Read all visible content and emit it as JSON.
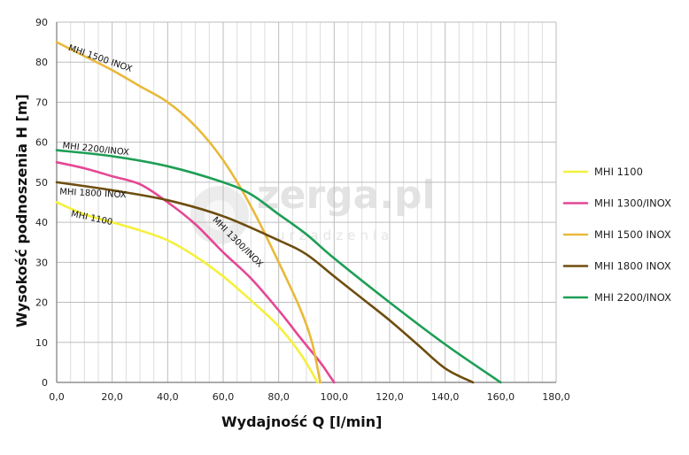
{
  "chart_data": {
    "type": "line",
    "xlabel": "Wydajność Q [l/min]",
    "ylabel": "Wysokość podnoszenia H [m]",
    "xlim": [
      0,
      180
    ],
    "ylim": [
      0,
      90
    ],
    "x_ticks": [
      "0,0",
      "20,0",
      "40,0",
      "60,0",
      "80,0",
      "100,0",
      "120,0",
      "140,0",
      "160,0",
      "180,0"
    ],
    "y_ticks": [
      "0",
      "10",
      "20",
      "30",
      "40",
      "50",
      "60",
      "70",
      "80",
      "90"
    ],
    "grid": true,
    "minor_grid_x_step": 5,
    "legend_position": "right",
    "watermark": {
      "main": "zerga.pl",
      "sub": "urządzenia"
    },
    "series": [
      {
        "name": "MHI 1100",
        "curve_label": "MHI 1100",
        "color": "#f5f03c",
        "points": [
          [
            0,
            45
          ],
          [
            10,
            42
          ],
          [
            20,
            40
          ],
          [
            30,
            38
          ],
          [
            40,
            35.5
          ],
          [
            50,
            31.5
          ],
          [
            60,
            26.5
          ],
          [
            70,
            20.5
          ],
          [
            80,
            14
          ],
          [
            88,
            7
          ],
          [
            94,
            0
          ]
        ]
      },
      {
        "name": "MHI 1300/INOX",
        "curve_label": "MHI 1300/INOX",
        "color": "#e64694",
        "points": [
          [
            0,
            55
          ],
          [
            10,
            53.5
          ],
          [
            20,
            51.5
          ],
          [
            30,
            49.5
          ],
          [
            40,
            45
          ],
          [
            50,
            39.5
          ],
          [
            60,
            32.5
          ],
          [
            70,
            26
          ],
          [
            80,
            18
          ],
          [
            88,
            11
          ],
          [
            95,
            5
          ],
          [
            98,
            2
          ],
          [
            100,
            0
          ]
        ]
      },
      {
        "name": "MHI 1500 INOX",
        "curve_label": "MHI 1500 INOX",
        "color": "#e8b93a",
        "points": [
          [
            0,
            85
          ],
          [
            10,
            81.5
          ],
          [
            20,
            78
          ],
          [
            30,
            74
          ],
          [
            40,
            70
          ],
          [
            50,
            64
          ],
          [
            60,
            55.5
          ],
          [
            70,
            44
          ],
          [
            80,
            30
          ],
          [
            88,
            18
          ],
          [
            92,
            10
          ],
          [
            95,
            0
          ]
        ]
      },
      {
        "name": "MHI 1800 INOX",
        "curve_label": "MHI 1800 INOX",
        "color": "#6e4d0f",
        "points": [
          [
            0,
            50
          ],
          [
            20,
            48
          ],
          [
            40,
            45.5
          ],
          [
            60,
            41.5
          ],
          [
            80,
            35.5
          ],
          [
            90,
            32
          ],
          [
            100,
            26.5
          ],
          [
            110,
            21
          ],
          [
            120,
            15.5
          ],
          [
            130,
            9.5
          ],
          [
            140,
            3.5
          ],
          [
            150,
            0
          ]
        ]
      },
      {
        "name": "MHI 2200/INOX",
        "curve_label": "MHI 2200/INOX",
        "color": "#1e9e55",
        "points": [
          [
            0,
            58
          ],
          [
            20,
            56.5
          ],
          [
            40,
            54
          ],
          [
            60,
            50
          ],
          [
            70,
            47
          ],
          [
            80,
            42
          ],
          [
            90,
            37
          ],
          [
            100,
            31
          ],
          [
            120,
            20
          ],
          [
            140,
            9.5
          ],
          [
            160,
            0
          ]
        ]
      }
    ]
  }
}
